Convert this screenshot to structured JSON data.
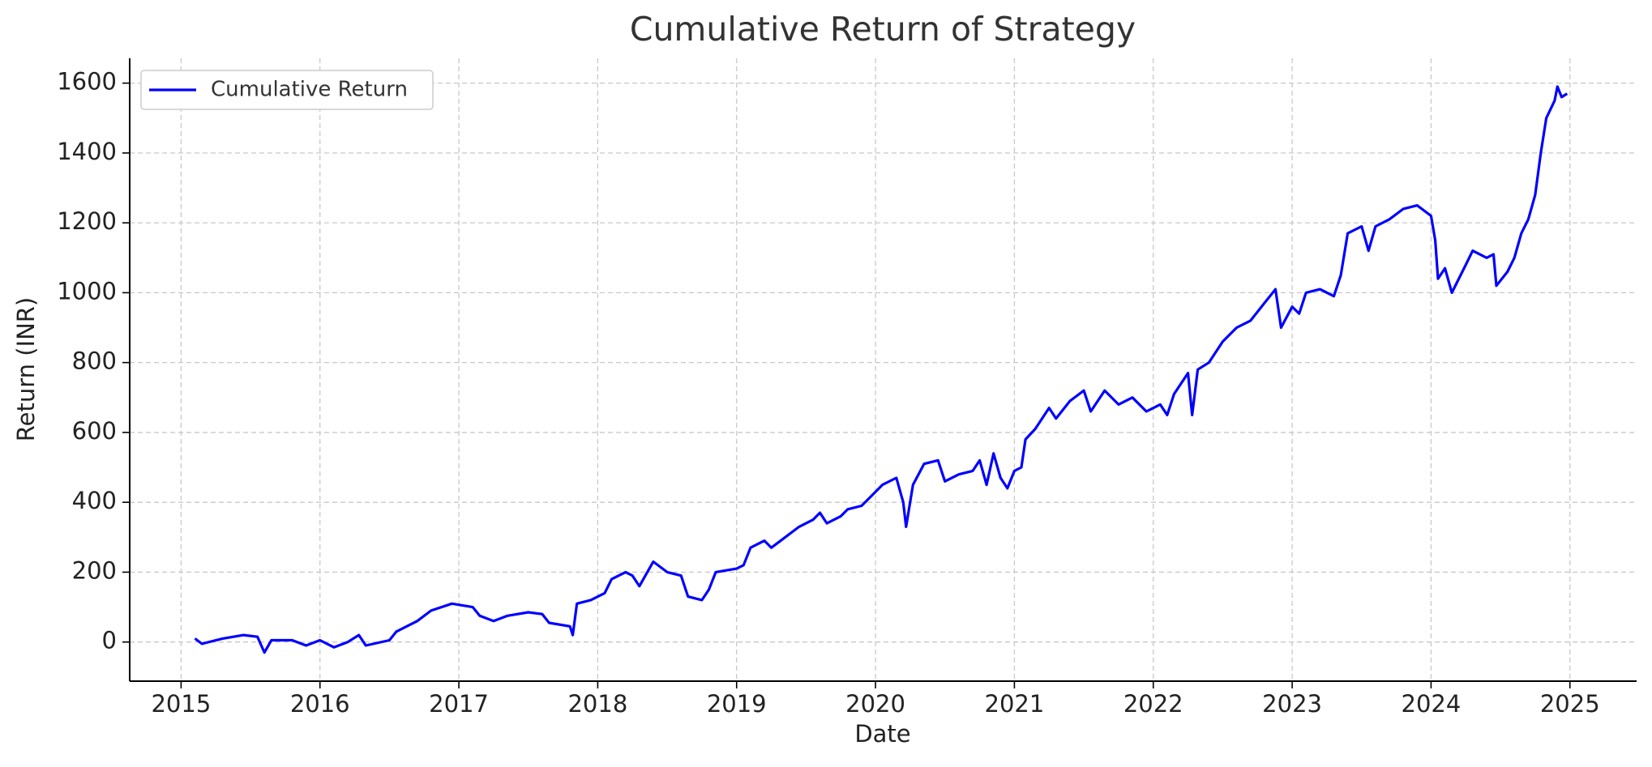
{
  "chart_data": {
    "type": "line",
    "title": "Cumulative Return of Strategy",
    "xlabel": "Date",
    "ylabel": "Return (INR)",
    "x": [
      2015.1,
      2015.15,
      2015.3,
      2015.45,
      2015.55,
      2015.6,
      2015.65,
      2015.8,
      2015.9,
      2016.0,
      2016.1,
      2016.2,
      2016.28,
      2016.33,
      2016.5,
      2016.55,
      2016.7,
      2016.8,
      2016.95,
      2017.1,
      2017.15,
      2017.25,
      2017.35,
      2017.5,
      2017.6,
      2017.65,
      2017.8,
      2017.82,
      2017.85,
      2017.95,
      2018.05,
      2018.1,
      2018.2,
      2018.25,
      2018.3,
      2018.4,
      2018.5,
      2018.6,
      2018.65,
      2018.75,
      2018.8,
      2018.85,
      2019.0,
      2019.05,
      2019.1,
      2019.2,
      2019.25,
      2019.35,
      2019.45,
      2019.55,
      2019.6,
      2019.65,
      2019.75,
      2019.8,
      2019.9,
      2020.0,
      2020.05,
      2020.15,
      2020.2,
      2020.22,
      2020.27,
      2020.35,
      2020.45,
      2020.5,
      2020.6,
      2020.7,
      2020.75,
      2020.8,
      2020.85,
      2020.9,
      2020.95,
      2021.0,
      2021.05,
      2021.08,
      2021.15,
      2021.25,
      2021.3,
      2021.4,
      2021.5,
      2021.55,
      2021.65,
      2021.75,
      2021.85,
      2021.95,
      2022.05,
      2022.1,
      2022.15,
      2022.25,
      2022.28,
      2022.32,
      2022.4,
      2022.5,
      2022.6,
      2022.7,
      2022.8,
      2022.88,
      2022.92,
      2023.0,
      2023.05,
      2023.1,
      2023.2,
      2023.3,
      2023.35,
      2023.4,
      2023.5,
      2023.55,
      2023.6,
      2023.7,
      2023.8,
      2023.9,
      2024.0,
      2024.03,
      2024.05,
      2024.1,
      2024.15,
      2024.25,
      2024.3,
      2024.4,
      2024.45,
      2024.47,
      2024.55,
      2024.6,
      2024.65,
      2024.7,
      2024.75,
      2024.79,
      2024.83,
      2024.89,
      2024.91,
      2024.94,
      2024.98
    ],
    "series": [
      {
        "name": "Cumulative Return",
        "color": "#0000ff",
        "values": [
          10,
          -5,
          10,
          20,
          15,
          -30,
          5,
          5,
          -10,
          5,
          -15,
          0,
          20,
          -10,
          5,
          30,
          60,
          90,
          110,
          100,
          75,
          60,
          75,
          85,
          80,
          55,
          45,
          20,
          110,
          120,
          140,
          180,
          200,
          190,
          160,
          230,
          200,
          190,
          130,
          120,
          150,
          200,
          210,
          220,
          270,
          290,
          270,
          300,
          330,
          350,
          370,
          340,
          360,
          380,
          390,
          430,
          450,
          470,
          400,
          330,
          450,
          510,
          520,
          460,
          480,
          490,
          520,
          450,
          540,
          470,
          440,
          490,
          500,
          580,
          610,
          670,
          640,
          690,
          720,
          660,
          720,
          680,
          700,
          660,
          680,
          650,
          710,
          770,
          650,
          780,
          800,
          860,
          900,
          920,
          970,
          1010,
          900,
          960,
          940,
          1000,
          1010,
          990,
          1050,
          1170,
          1190,
          1120,
          1190,
          1210,
          1240,
          1250,
          1220,
          1150,
          1040,
          1070,
          1000,
          1080,
          1120,
          1100,
          1110,
          1020,
          1060,
          1100,
          1170,
          1210,
          1280,
          1400,
          1500,
          1550,
          1590,
          1560,
          1570
        ]
      }
    ],
    "xlim": [
      2014.63,
      2025.48
    ],
    "xticks": [
      2015,
      2016,
      2017,
      2018,
      2019,
      2020,
      2021,
      2022,
      2023,
      2024,
      2025
    ],
    "ylim": [
      -112,
      1671
    ],
    "yticks": [
      0,
      200,
      400,
      600,
      800,
      1000,
      1200,
      1400,
      1600
    ],
    "grid": true,
    "legend": "upper-left"
  }
}
